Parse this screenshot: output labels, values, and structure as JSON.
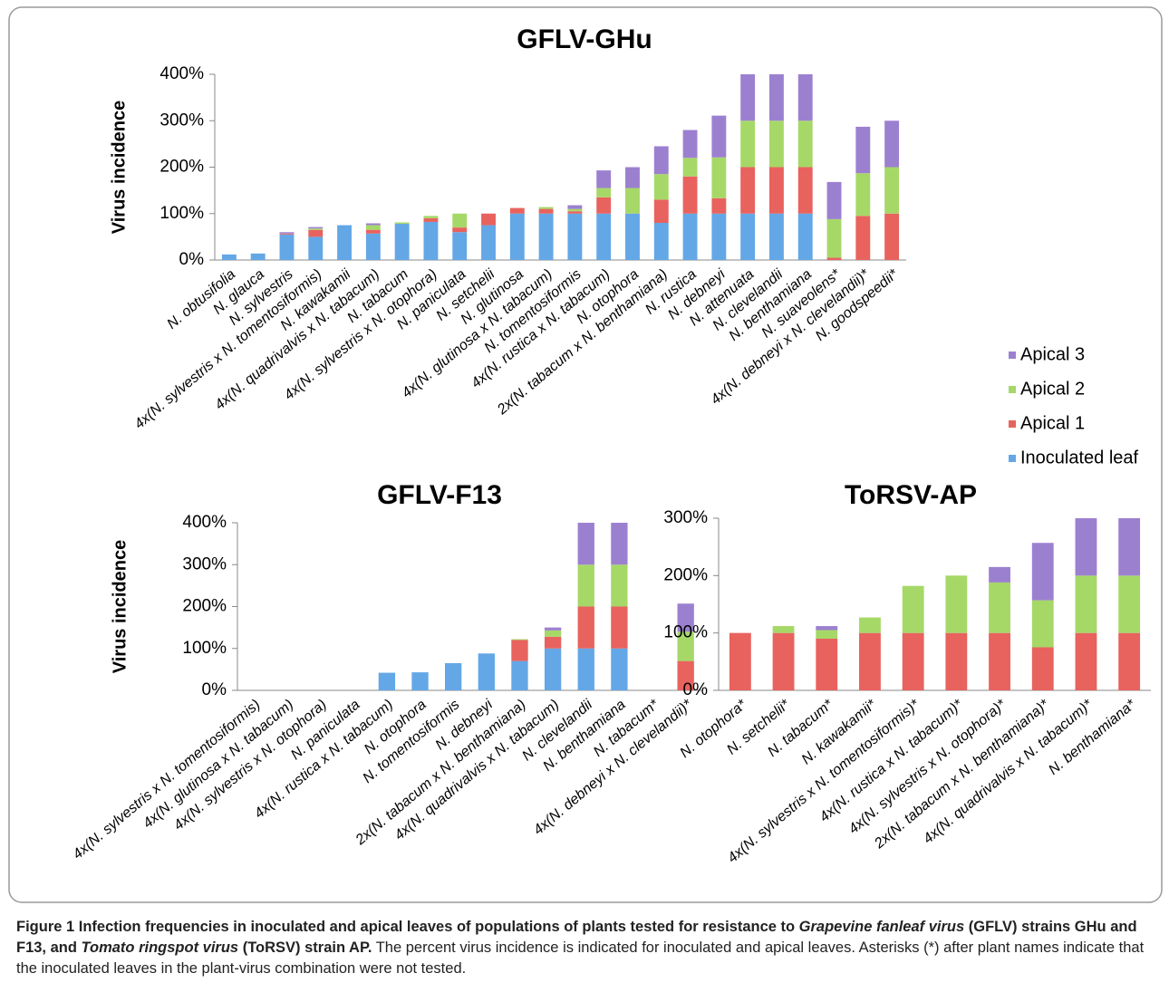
{
  "chart_data": [
    {
      "type": "bar",
      "stacked": true,
      "title": "GFLV-GHu",
      "y_label": "Virus incidence",
      "legend": "right",
      "categories": [
        "N. obtusifolia",
        "N. glauca",
        "N. sylvestris",
        "4x(N. sylvestris x N. tomentosiformis)",
        "N. kawakamii",
        "4x(N. quadrivalvis x N. tabacum)",
        "N. tabacum",
        "4x(N. sylvestris x N. otophora)",
        "N. paniculata",
        "N. setchelii",
        "N. glutinosa",
        "4x(N. glutinosa x N. tabacum)",
        "N. tomentosiformis",
        "4x(N. rustica x N. tabacum)",
        "N. otophora",
        "2x(N. tabacum x N. benthamiana)",
        "N. rustica",
        "N. debneyi",
        "N. attenuata",
        "N. clevelandii",
        "N. benthamiana",
        "N. suaveolens*",
        "4x(N. debneyi x N. clevelandii)*",
        "N. goodspeedii*"
      ],
      "series": [
        {
          "name": "Inoculated leaf",
          "color": "#63a7e6",
          "values": [
            12,
            14,
            55,
            50,
            75,
            57,
            78,
            82,
            60,
            75,
            100,
            100,
            100,
            100,
            100,
            80,
            100,
            100,
            100,
            100,
            100,
            0,
            0,
            0
          ]
        },
        {
          "name": "Apical 1",
          "color": "#e8625e",
          "values": [
            0,
            0,
            2,
            15,
            0,
            8,
            0,
            8,
            10,
            25,
            12,
            10,
            5,
            35,
            0,
            50,
            80,
            33,
            100,
            100,
            100,
            5,
            95,
            100
          ]
        },
        {
          "name": "Apical 2",
          "color": "#a6d868",
          "values": [
            0,
            0,
            0,
            3,
            0,
            10,
            3,
            5,
            30,
            0,
            0,
            4,
            5,
            20,
            55,
            55,
            40,
            88,
            100,
            100,
            100,
            83,
            92,
            100
          ]
        },
        {
          "name": "Apical 3",
          "color": "#9c80d0",
          "values": [
            0,
            0,
            3,
            3,
            0,
            4,
            0,
            0,
            0,
            0,
            0,
            0,
            8,
            38,
            45,
            60,
            60,
            90,
            100,
            100,
            100,
            80,
            100,
            100
          ]
        }
      ],
      "ylim": [
        0,
        400
      ],
      "yticks": [
        {
          "value": 0,
          "label": "0%"
        },
        {
          "value": 100,
          "label": "100%"
        },
        {
          "value": 200,
          "label": "200%"
        },
        {
          "value": 300,
          "label": "300%"
        },
        {
          "value": 400,
          "label": "400%"
        }
      ]
    },
    {
      "type": "bar",
      "stacked": true,
      "title": "GFLV-F13",
      "y_label": "Virus incidence",
      "categories": [
        "4x(N. sylvestris x N. tomentosiformis)",
        "4x(N. glutinosa x N. tabacum)",
        "4x(N. sylvestris x N. otophora)",
        "N. paniculata",
        "4x(N. rustica x N. tabacum)",
        "N. otophora",
        "N. tomentosiformis",
        "N. debneyi",
        "2x(N. tabacum x N. benthamiana)",
        "4x(N. quadrivalvis x N. tabacum)",
        "N. clevelandii",
        "N. benthamiana",
        "N. tabacum*",
        "4x(N. debneyi x N. clevelandii)*"
      ],
      "series": [
        {
          "values": [
            0,
            0,
            0,
            0,
            42,
            43,
            65,
            88,
            70,
            100,
            100,
            100,
            0,
            0
          ]
        },
        {
          "values": [
            0,
            0,
            0,
            0,
            0,
            0,
            0,
            0,
            50,
            28,
            100,
            100,
            0,
            70
          ]
        },
        {
          "values": [
            0,
            0,
            0,
            0,
            0,
            0,
            0,
            0,
            2,
            15,
            100,
            100,
            0,
            70
          ]
        },
        {
          "values": [
            0,
            0,
            0,
            0,
            0,
            0,
            0,
            0,
            0,
            7,
            100,
            100,
            0,
            67
          ]
        }
      ],
      "ylim": [
        0,
        400
      ],
      "yticks": [
        {
          "value": 0,
          "label": "0%"
        },
        {
          "value": 100,
          "label": "100%"
        },
        {
          "value": 200,
          "label": "200%"
        },
        {
          "value": 300,
          "label": "300%"
        },
        {
          "value": 400,
          "label": "400%"
        }
      ]
    },
    {
      "type": "bar",
      "stacked": true,
      "title": "ToRSV-AP",
      "categories": [
        "N. otophora*",
        "N. setchelii*",
        "N. tabacum*",
        "N. kawakamii*",
        "4x(N. sylvestris x N. tomentosiformis)*",
        "4x(N. rustica x N. tabacum)*",
        "4x(N. sylvestris x N. otophora)*",
        "2x(N. tabacum x N. benthamiana)*",
        "4x(N. quadrivalvis x N. tabacum)*",
        "N. benthamiana*"
      ],
      "series": [
        {
          "values": [
            null,
            null,
            null,
            null,
            null,
            null,
            null,
            null,
            null,
            null
          ]
        },
        {
          "values": [
            100,
            100,
            90,
            100,
            100,
            100,
            100,
            75,
            100,
            100
          ]
        },
        {
          "values": [
            0,
            12,
            15,
            27,
            82,
            100,
            88,
            82,
            100,
            100
          ]
        },
        {
          "values": [
            0,
            0,
            7,
            0,
            0,
            0,
            27,
            100,
            100,
            100
          ]
        }
      ],
      "ylim": [
        0,
        300
      ],
      "yticks": [
        {
          "value": 0,
          "label": "0%"
        },
        {
          "value": 100,
          "label": "100%"
        },
        {
          "value": 200,
          "label": "200%"
        },
        {
          "value": 300,
          "label": "300%"
        }
      ]
    }
  ],
  "caption": [
    {
      "text": "Figure 1 Infection frequencies in inoculated and apical leaves of populations of plants tested for resistance to ",
      "style": "bold"
    },
    {
      "text": "Grapevine fanleaf virus",
      "style": "bold-italic"
    },
    {
      "text": " (GFLV) strains GHu and F13, and ",
      "style": "bold"
    },
    {
      "text": "Tomato ringspot virus",
      "style": "bold-italic"
    },
    {
      "text": " (ToRSV) strain AP.",
      "style": "bold"
    },
    {
      "text": " The percent virus incidence is indicated for inoculated and apical leaves. Asterisks (*) after plant names indicate that the inoculated leaves in the plant-virus combination were not tested.",
      "style": "normal"
    }
  ]
}
